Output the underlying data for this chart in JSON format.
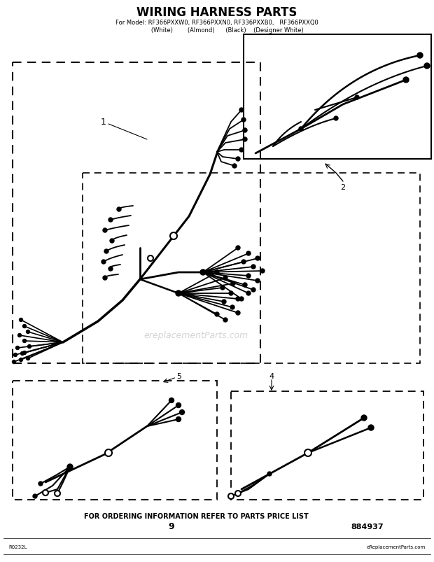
{
  "title": "WIRING HARNESS PARTS",
  "subtitle": "For Model: RF366PXXW0, RF366PXXN0, RF336PXXB0,   RF366PXXQ0",
  "subtitle2": "           (White)        (Almond)      (Black)    (Designer White)",
  "bg_color": "#ffffff",
  "text_color": "#000000",
  "footer_text": "FOR ORDERING INFORMATION REFER TO PARTS PRICE LIST",
  "page_number": "9",
  "part_number": "884937",
  "watermark": "ereplacementParts.com",
  "bottom_left": "R0232L",
  "bottom_right": "eReplacementParts.com"
}
